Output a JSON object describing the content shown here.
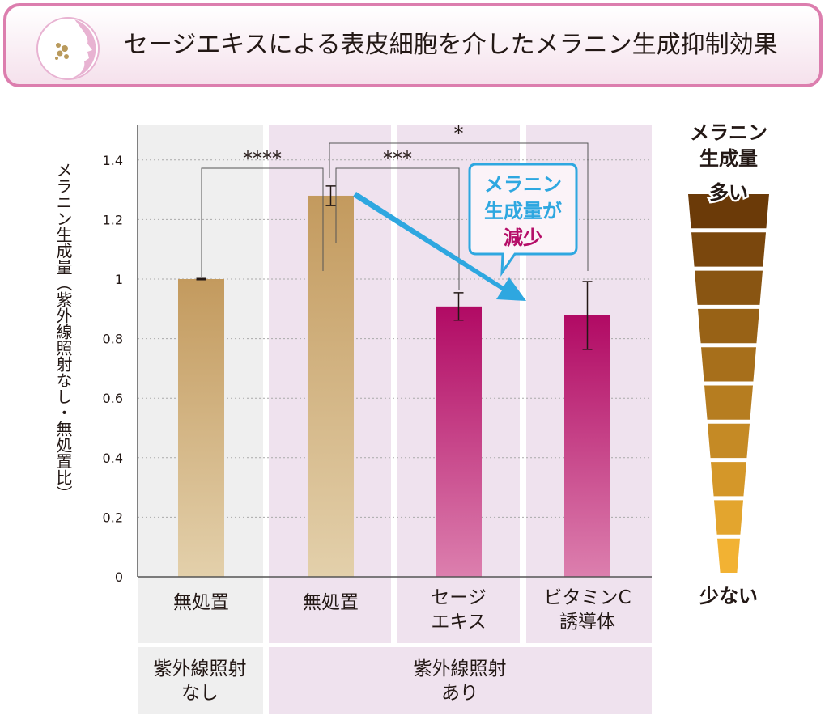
{
  "title": "セージエキスによる表皮細胞を介したメラニン生成抑制効果",
  "title_icon": "face-profile-with-spots-icon",
  "chart_data": {
    "type": "bar",
    "ylabel": "メラニン生成量（紫外線照射なし・無処置比）",
    "ylim": [
      0,
      1.4
    ],
    "yticks": [
      "0",
      "0.2",
      "0.4",
      "0.6",
      "0.8",
      "1",
      "1.2",
      "1.4"
    ],
    "grid": true,
    "categories": [
      "無処置",
      "無処置",
      "セージ\nエキス",
      "ビタミンC\n誘導体"
    ],
    "values": [
      1.0,
      1.28,
      0.908,
      0.878
    ],
    "errors": [
      0.002,
      0.033,
      0.046,
      0.114
    ],
    "bar_colors": [
      "#c49a5c",
      "#c49a5c",
      "#b50d68",
      "#b50d68"
    ],
    "groups": [
      {
        "label": "紫外線照射\nなし",
        "categories": [
          0
        ]
      },
      {
        "label": "紫外線照射\nあり",
        "categories": [
          1,
          2,
          3
        ]
      }
    ],
    "significance": [
      {
        "from": 0,
        "to": 1,
        "label": "****"
      },
      {
        "from": 1,
        "to": 2,
        "label": "***"
      },
      {
        "from": 1,
        "to": 3,
        "label": "*"
      }
    ],
    "callout": {
      "line1": "メラニン",
      "line2": "生成量が",
      "line3": "減少"
    },
    "scale": {
      "title": "メラニン\n生成量",
      "high": "多い",
      "low": "少ない",
      "levels": 10,
      "color_high": "#6b3a08",
      "color_low": "#f2b233"
    },
    "colors": {
      "accent_pink": "#b50d68",
      "accent_blue": "#2ea7e0",
      "panel_gray": "#efefef",
      "panel_pink": "#efe2ee"
    }
  }
}
